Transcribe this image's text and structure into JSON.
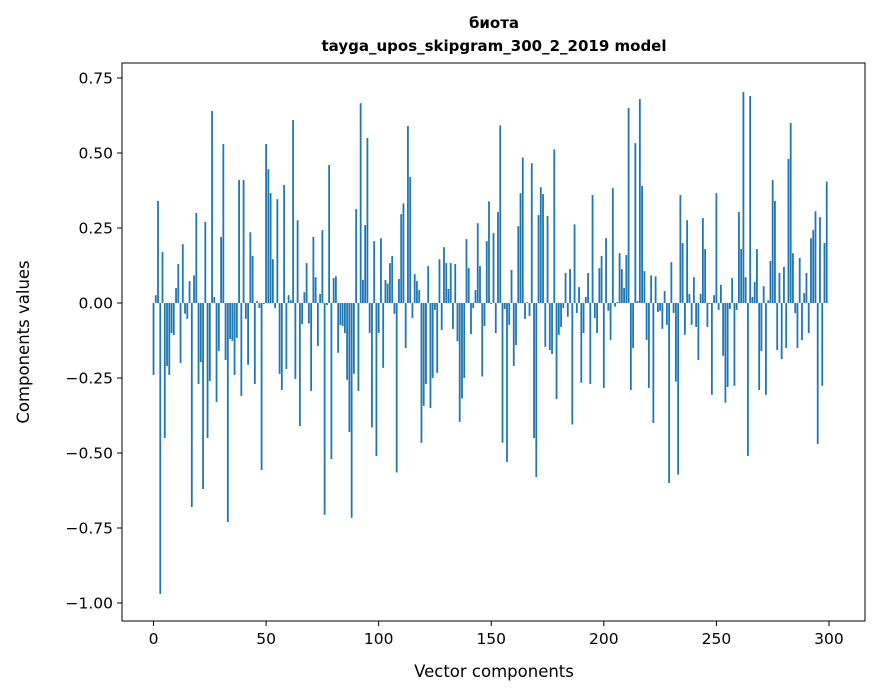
{
  "chart_data": {
    "type": "bar",
    "title": "биота",
    "subtitle": "tayga_upos_skipgram_300_2_2019 model",
    "xlabel": "Vector components",
    "ylabel": "Components values",
    "xlim": [
      -14,
      316
    ],
    "ylim": [
      -1.06,
      0.8
    ],
    "grid": false,
    "bar_color": "#1f77b4",
    "x_ticks": [
      0,
      50,
      100,
      150,
      200,
      250,
      300
    ],
    "x_tick_labels": [
      "0",
      "50",
      "100",
      "150",
      "200",
      "250",
      "300"
    ],
    "y_ticks": [
      0.75,
      0.5,
      0.25,
      0,
      -0.25,
      -0.5,
      -0.75,
      -1.0
    ],
    "y_tick_labels": [
      "0.75",
      "0.50",
      "0.25",
      "0.00",
      "−0.25",
      "−0.50",
      "−0.75",
      "−1.00"
    ],
    "values": [
      -0.24,
      0.026,
      0.34,
      -0.97,
      0.17,
      -0.45,
      -0.21,
      -0.24,
      -0.1,
      -0.107,
      0.05,
      0.13,
      -0.2,
      0.196,
      -0.036,
      -0.053,
      0.073,
      -0.68,
      0.092,
      0.3,
      -0.27,
      -0.197,
      -0.62,
      0.27,
      -0.45,
      -0.26,
      0.64,
      0.02,
      -0.33,
      -0.16,
      0.22,
      0.53,
      -0.19,
      -0.73,
      -0.12,
      -0.126,
      -0.24,
      -0.116,
      0.41,
      -0.31,
      0.41,
      -0.053,
      -0.206,
      0.236,
      0.157,
      -0.27,
      0.006,
      -0.017,
      -0.557,
      -0.003,
      0.53,
      0.446,
      0.366,
      0.146,
      -0.017,
      0.346,
      -0.236,
      -0.29,
      0.393,
      -0.22,
      0.026,
      0.009,
      0.61,
      -0.253,
      0.276,
      -0.41,
      -0.07,
      0.036,
      0.133,
      -0.068,
      -0.293,
      0.22,
      0.086,
      -0.143,
      0.03,
      0.243,
      -0.706,
      -0.007,
      0.46,
      -0.52,
      0.083,
      0.089,
      -0.166,
      -0.073,
      -0.077,
      -0.1,
      -0.256,
      -0.43,
      -0.716,
      -0.236,
      0.313,
      -0.293,
      0.666,
      0.077,
      0.26,
      0.55,
      -0.1,
      -0.415,
      0.206,
      -0.51,
      -0.1,
      0.216,
      -0.216,
      0.077,
      0.065,
      0.133,
      0.157,
      -0.036,
      -0.565,
      0.08,
      0.296,
      0.332,
      -0.15,
      0.59,
      0.42,
      -0.05,
      0.096,
      0.073,
      0.043,
      -0.466,
      -0.343,
      -0.27,
      0.123,
      -0.35,
      -0.25,
      -0.023,
      -0.233,
      0.146,
      -0.09,
      0.186,
      0.133,
      0.047,
      0.133,
      -0.087,
      0.13,
      -0.127,
      -0.396,
      -0.318,
      -0.25,
      0.213,
      0.116,
      -0.104,
      -0.017,
      0.043,
      0.266,
      0.123,
      -0.245,
      -0.077,
      0.206,
      0.339,
      -0.003,
      0.233,
      -0.1,
      0.303,
      0.592,
      -0.466,
      -0.02,
      -0.53,
      -0.073,
      0.11,
      -0.21,
      -0.14,
      0.256,
      0.366,
      0.485,
      -0.053,
      0.003,
      -0.043,
      0.466,
      -0.45,
      -0.58,
      0.293,
      0.386,
      0.363,
      -0.146,
      0.29,
      -0.157,
      -0.17,
      0.512,
      -0.32,
      -0.106,
      -0.08,
      -0.017,
      0.1,
      -0.046,
      0.113,
      -0.405,
      0.262,
      -0.033,
      0.053,
      -0.266,
      -0.1,
      0.02,
      0.1,
      -0.27,
      0.36,
      -0.05,
      -0.1,
      0.116,
      0.157,
      -0.283,
      0.216,
      -0.026,
      -0.123,
      0.383,
      -0.012,
      0.003,
      0.166,
      0.113,
      0.05,
      0.16,
      0.65,
      -0.29,
      -0.15,
      0.533,
      0.006,
      0.68,
      0.39,
      0.106,
      -0.123,
      -0.283,
      0.092,
      -0.4,
      0.089,
      -0.03,
      -0.026,
      -0.086,
      0.04,
      -0.073,
      -0.6,
      0.136,
      -0.033,
      -0.262,
      -0.572,
      0.36,
      0.2,
      -0.106,
      0.276,
      0.03,
      -0.073,
      0.086,
      -0.08,
      -0.19,
      0.03,
      0.283,
      0.18,
      -0.08,
      -0.003,
      -0.306,
      0.026,
      0.366,
      -0.023,
      0.06,
      -0.176,
      -0.332,
      -0.28,
      -0.02,
      0.083,
      -0.276,
      -0.023,
      0.303,
      0.18,
      0.703,
      0.086,
      -0.51,
      0.69,
      0.02,
      0.07,
      0.18,
      -0.29,
      -0.16,
      0.056,
      -0.306,
      0.009,
      0.14,
      0.41,
      0.34,
      -0.157,
      0.1,
      -0.187,
      0.12,
      -0.15,
      0.48,
      0.6,
      0.166,
      -0.034,
      -0.15,
      0.15,
      -0.124,
      0.033,
      0.1,
      -0.1,
      0.216,
      0.243,
      0.306,
      -0.47,
      0.286,
      -0.276,
      0.2,
      0.405
    ]
  }
}
